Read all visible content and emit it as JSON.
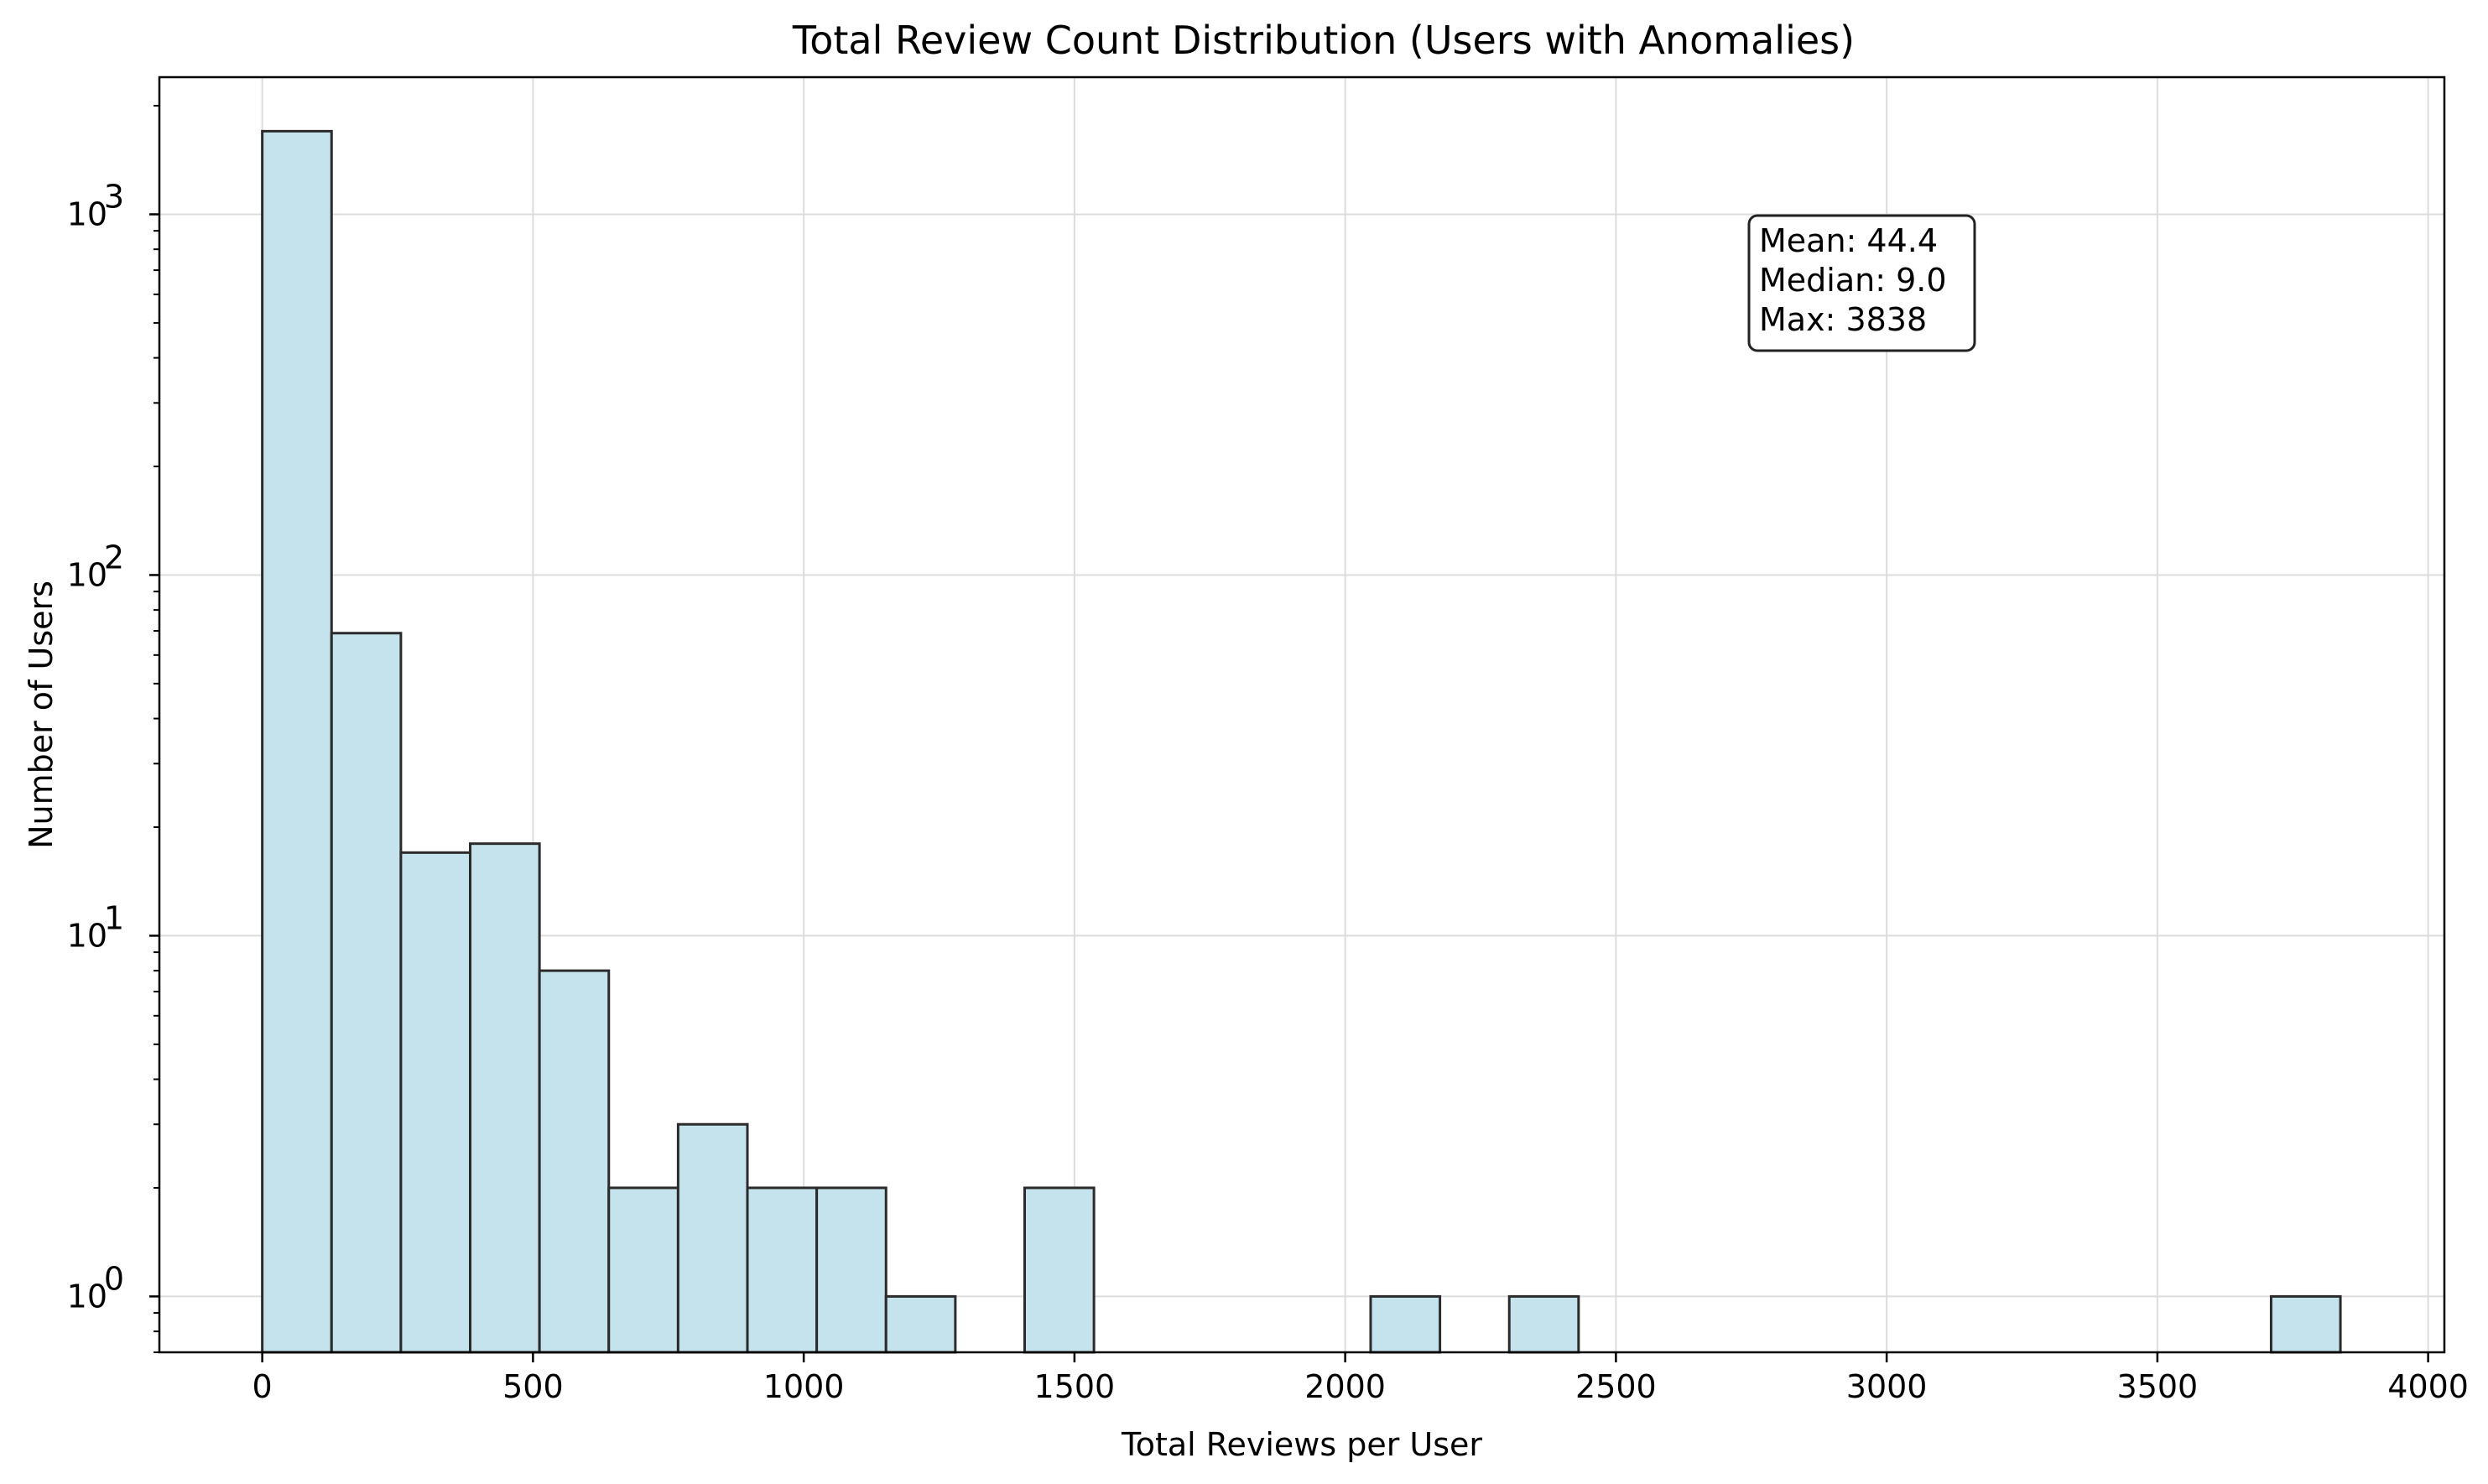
{
  "chart_data": {
    "type": "bar",
    "title": "Total Review Count Distribution (Users with Anomalies)",
    "xlabel": "Total Reviews per User",
    "ylabel": "Number of Users",
    "xlim": [
      -190,
      4030
    ],
    "ylim": [
      0.7,
      2400
    ],
    "yscale": "log",
    "grid": true,
    "bar_fill": "#c5e3ec",
    "bar_edge": "#2b2b2b",
    "bins": [
      {
        "x0": 0,
        "x1": 128,
        "count": 1700
      },
      {
        "x0": 128,
        "x1": 256,
        "count": 69
      },
      {
        "x0": 256,
        "x1": 384,
        "count": 17
      },
      {
        "x0": 384,
        "x1": 512,
        "count": 18
      },
      {
        "x0": 512,
        "x1": 640,
        "count": 8
      },
      {
        "x0": 640,
        "x1": 768,
        "count": 2
      },
      {
        "x0": 768,
        "x1": 896,
        "count": 3
      },
      {
        "x0": 896,
        "x1": 1024,
        "count": 2
      },
      {
        "x0": 1024,
        "x1": 1152,
        "count": 2
      },
      {
        "x0": 1152,
        "x1": 1280,
        "count": 1
      },
      {
        "x0": 1408,
        "x1": 1536,
        "count": 2
      },
      {
        "x0": 2047,
        "x1": 2175,
        "count": 1
      },
      {
        "x0": 2303,
        "x1": 2431,
        "count": 1
      },
      {
        "x0": 3710,
        "x1": 3838,
        "count": 1
      }
    ],
    "x_ticks": [
      {
        "value": 0,
        "label": "0"
      },
      {
        "value": 500,
        "label": "500"
      },
      {
        "value": 1000,
        "label": "1000"
      },
      {
        "value": 1500,
        "label": "1500"
      },
      {
        "value": 2000,
        "label": "2000"
      },
      {
        "value": 2500,
        "label": "2500"
      },
      {
        "value": 3000,
        "label": "3000"
      },
      {
        "value": 3500,
        "label": "3500"
      },
      {
        "value": 4000,
        "label": "4000"
      }
    ],
    "y_ticks": [
      {
        "value": 1,
        "base": "10",
        "exp": "0"
      },
      {
        "value": 10,
        "base": "10",
        "exp": "1"
      },
      {
        "value": 100,
        "base": "10",
        "exp": "2"
      },
      {
        "value": 1000,
        "base": "10",
        "exp": "3"
      }
    ],
    "annotation": {
      "lines": [
        "Mean: 44.4",
        "Median: 9.0",
        "Max: 3838"
      ],
      "placement": "top-right"
    }
  }
}
